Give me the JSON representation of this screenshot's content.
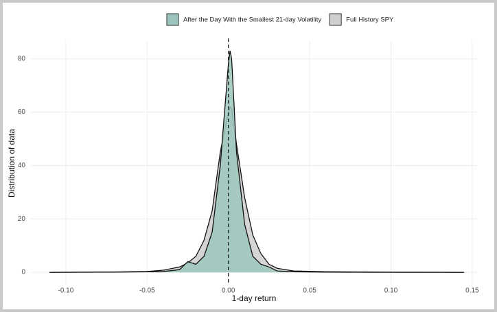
{
  "chart_data": {
    "type": "area",
    "x_label": "1-day return",
    "y_label": "Distribution of data",
    "x": [
      -0.11,
      -0.07,
      -0.05,
      -0.04,
      -0.03,
      -0.025,
      -0.02,
      -0.015,
      -0.01,
      -0.005,
      0,
      0.001,
      0.002,
      0.005,
      0.01,
      0.015,
      0.02,
      0.025,
      0.03,
      0.04,
      0.06,
      0.1,
      0.145
    ],
    "series": [
      {
        "name": "After the Day With the Smallest 21-day Volatility",
        "color": "#9cc5bd",
        "values": [
          0,
          0.05,
          0.2,
          0.3,
          1,
          4,
          3,
          6,
          15,
          40,
          78,
          83,
          80,
          45,
          18,
          6,
          3,
          2,
          0.5,
          0.2,
          0.05,
          0,
          0
        ]
      },
      {
        "name": "Full History SPY",
        "color": "#cfcfcf",
        "values": [
          0,
          0.1,
          0.3,
          0.8,
          2,
          3.5,
          6,
          12,
          23,
          45,
          60,
          62,
          61,
          48,
          28,
          14,
          7,
          3,
          1.5,
          0.5,
          0.2,
          0.05,
          0
        ]
      }
    ],
    "xlim": [
      -0.1215,
      0.153
    ],
    "xticks": [
      {
        "value": -0.1,
        "label": "-0.10"
      },
      {
        "value": -0.05,
        "label": "-0.05"
      },
      {
        "value": 0,
        "label": "0.00"
      },
      {
        "value": 0.05,
        "label": "0.05"
      },
      {
        "value": 0.1,
        "label": "0.10"
      },
      {
        "value": 0.15,
        "label": "0.15"
      }
    ],
    "ylim": [
      -4.6,
      86.6
    ],
    "yticks": [
      0,
      20,
      40,
      60,
      80
    ],
    "vline": 0,
    "grid": true,
    "legend_position": "top"
  }
}
